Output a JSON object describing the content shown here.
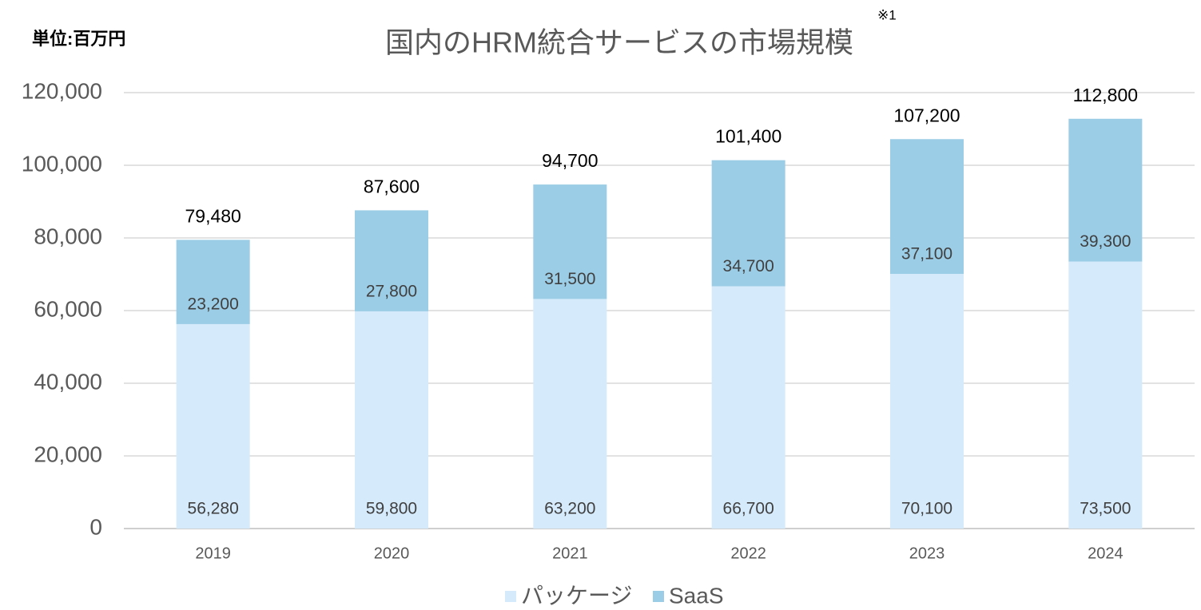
{
  "chart_data": {
    "type": "stacked_bar",
    "title": "国内のHRM統合サービスの市場規模",
    "title_note": "※1",
    "unit_label": "単位:百万円",
    "categories": [
      "2019",
      "2020",
      "2021",
      "2022",
      "2023",
      "2024"
    ],
    "series": [
      {
        "name": "パッケージ",
        "color": "#d5eafb",
        "values": [
          56280,
          59800,
          63200,
          66700,
          70100,
          73500
        ],
        "value_labels": [
          "56,280",
          "59,800",
          "63,200",
          "66,700",
          "70,100",
          "73,500"
        ]
      },
      {
        "name": "SaaS",
        "color": "#9bcde6",
        "values": [
          23200,
          27800,
          31500,
          34700,
          37100,
          39300
        ],
        "value_labels": [
          "23,200",
          "27,800",
          "31,500",
          "34,700",
          "37,100",
          "39,300"
        ]
      }
    ],
    "totals": [
      79480,
      87600,
      94700,
      101400,
      107200,
      112800
    ],
    "total_labels": [
      "79,480",
      "87,600",
      "94,700",
      "101,400",
      "107,200",
      "112,800"
    ],
    "ylim": [
      0,
      120000
    ],
    "yticks": [
      0,
      {
        "value": 20000,
        "label": "20,000"
      },
      {
        "value": 40000,
        "label": "40,000"
      },
      {
        "value": 60000,
        "label": "60,000"
      },
      {
        "value": 80000,
        "label": "80,000"
      },
      {
        "value": 100000,
        "label": "100,000"
      },
      {
        "value": 120000,
        "label": "120,000"
      }
    ],
    "grid": true,
    "legend": "bottom"
  }
}
